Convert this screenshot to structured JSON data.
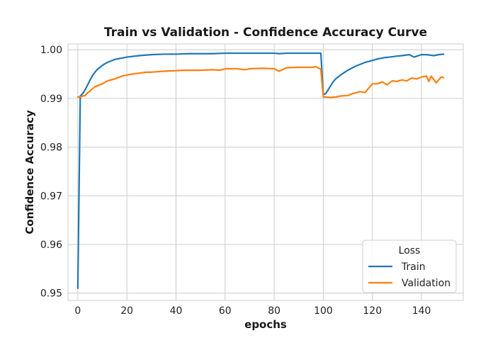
{
  "chart_data": {
    "type": "line",
    "title": "Train vs Validation - Confidence Accuracy Curve",
    "xlabel": "epochs",
    "ylabel": "Confidence Accuracy",
    "xlim": [
      -4,
      157
    ],
    "ylim": [
      0.9485,
      1.0012
    ],
    "xticks": [
      0,
      20,
      40,
      60,
      80,
      100,
      120,
      140
    ],
    "yticks": [
      0.95,
      0.96,
      0.97,
      0.98,
      0.99,
      1.0
    ],
    "ytick_labels": [
      "0.95",
      "0.96",
      "0.97",
      "0.98",
      "0.99",
      "1.00"
    ],
    "grid": true,
    "legend": {
      "title": "Loss",
      "placement": "lower-right"
    },
    "series": [
      {
        "name": "Train",
        "color": "#1f77b4",
        "x": [
          0,
          1,
          2,
          3,
          4,
          5,
          6,
          7,
          8,
          10,
          12,
          15,
          20,
          25,
          30,
          35,
          40,
          45,
          50,
          55,
          60,
          65,
          70,
          75,
          80,
          82,
          85,
          90,
          95,
          99,
          100,
          101,
          102,
          103,
          104,
          105,
          107,
          110,
          113,
          115,
          117,
          120,
          122,
          125,
          127,
          130,
          132,
          135,
          137,
          140,
          142,
          145,
          147,
          149
        ],
        "y": [
          0.951,
          0.9905,
          0.991,
          0.9918,
          0.9928,
          0.9938,
          0.9947,
          0.9954,
          0.996,
          0.9968,
          0.9974,
          0.998,
          0.9985,
          0.9988,
          0.999,
          0.9991,
          0.9991,
          0.9992,
          0.9992,
          0.9992,
          0.9993,
          0.9993,
          0.9993,
          0.9993,
          0.9993,
          0.9992,
          0.9993,
          0.9993,
          0.9993,
          0.9993,
          0.9908,
          0.991,
          0.9918,
          0.9926,
          0.9934,
          0.994,
          0.9948,
          0.9958,
          0.9966,
          0.997,
          0.9974,
          0.9978,
          0.9981,
          0.9984,
          0.9985,
          0.9987,
          0.9988,
          0.999,
          0.9985,
          0.999,
          0.999,
          0.9988,
          0.999,
          0.9991
        ]
      },
      {
        "name": "Validation",
        "color": "#ff7f0e",
        "x": [
          0,
          1,
          2,
          3,
          4,
          5,
          6,
          7,
          8,
          10,
          12,
          15,
          18,
          20,
          22,
          25,
          28,
          30,
          35,
          40,
          43,
          45,
          48,
          50,
          55,
          58,
          60,
          65,
          68,
          70,
          75,
          80,
          82,
          85,
          90,
          95,
          97,
          99,
          100,
          101,
          103,
          105,
          107,
          110,
          112,
          115,
          117,
          118,
          120,
          122,
          124,
          126,
          128,
          130,
          132,
          134,
          136,
          138,
          140,
          142,
          143,
          144,
          146,
          148,
          149
        ],
        "y": [
          0.9903,
          0.9903,
          0.9905,
          0.9906,
          0.9912,
          0.9915,
          0.992,
          0.9924,
          0.9926,
          0.993,
          0.9936,
          0.994,
          0.9946,
          0.9948,
          0.995,
          0.9952,
          0.9954,
          0.9954,
          0.9956,
          0.9957,
          0.9958,
          0.9958,
          0.9958,
          0.9958,
          0.9959,
          0.9958,
          0.9961,
          0.9961,
          0.9959,
          0.9961,
          0.9962,
          0.9961,
          0.9956,
          0.9963,
          0.9964,
          0.9964,
          0.9965,
          0.996,
          0.9903,
          0.9903,
          0.9902,
          0.9903,
          0.9905,
          0.9906,
          0.991,
          0.9914,
          0.9912,
          0.9918,
          0.993,
          0.993,
          0.9934,
          0.9928,
          0.9936,
          0.9935,
          0.9938,
          0.9936,
          0.9942,
          0.994,
          0.9944,
          0.9946,
          0.9935,
          0.9946,
          0.9932,
          0.9944,
          0.9943
        ]
      }
    ]
  }
}
